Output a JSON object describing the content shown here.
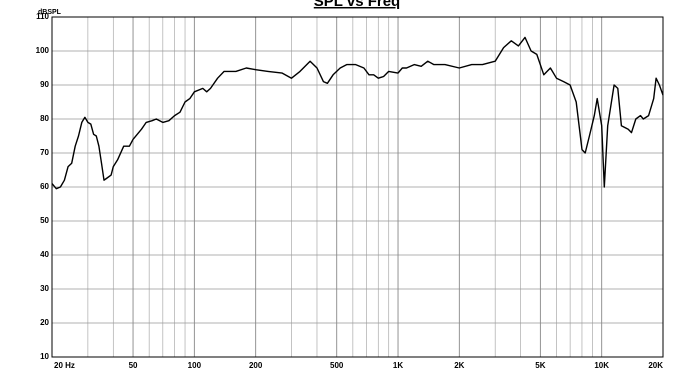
{
  "chart_data": {
    "type": "line",
    "title": "SPL vs Freq",
    "y_label": "dBSPL",
    "x": [
      20,
      21,
      22,
      23,
      24,
      25,
      26,
      27,
      28,
      29,
      30,
      31,
      32,
      33,
      34,
      35,
      36,
      37,
      39,
      40,
      42,
      45,
      48,
      50,
      55,
      58,
      62,
      65,
      70,
      75,
      80,
      85,
      90,
      95,
      100,
      110,
      115,
      120,
      130,
      140,
      150,
      160,
      180,
      200,
      230,
      270,
      300,
      330,
      370,
      400,
      430,
      450,
      480,
      520,
      560,
      620,
      680,
      720,
      760,
      800,
      850,
      900,
      1000,
      1050,
      1100,
      1200,
      1300,
      1400,
      1500,
      1700,
      2000,
      2300,
      2600,
      3000,
      3300,
      3600,
      3900,
      4200,
      4500,
      4800,
      5200,
      5600,
      6000,
      6500,
      7000,
      7500,
      8000,
      8300,
      8700,
      9200,
      9500,
      10000,
      10300,
      10700,
      11500,
      12000,
      12500,
      13500,
      14000,
      14700,
      15500,
      16000,
      17000,
      18000,
      18500,
      19200,
      20000
    ],
    "series": [
      {
        "color": "#000000",
        "values": [
          61,
          59.5,
          60,
          62,
          66,
          67,
          72,
          75,
          79,
          80.5,
          79,
          78.5,
          75.5,
          75,
          72,
          67,
          62,
          62.5,
          63.5,
          66,
          68,
          72,
          72,
          74,
          77,
          79,
          79.5,
          80,
          79,
          79.5,
          81,
          82,
          85,
          86,
          88,
          89,
          88,
          89,
          92,
          94,
          94,
          94,
          95,
          94.5,
          94,
          93.5,
          92,
          94,
          97,
          95,
          91,
          90.5,
          93,
          95,
          96,
          96,
          95,
          93,
          93,
          92,
          92.5,
          94,
          93.5,
          95,
          95,
          96,
          95.5,
          97,
          96,
          96,
          95,
          96,
          96,
          97,
          101,
          103,
          101.5,
          104,
          100,
          99,
          93,
          95,
          92,
          91,
          90,
          85,
          71,
          70,
          75,
          81,
          86,
          78,
          60,
          78,
          90,
          89,
          78,
          77,
          76,
          80,
          81,
          80,
          81,
          86,
          92,
          90,
          87
        ]
      }
    ],
    "xlim": [
      20,
      20000
    ],
    "log_x": true,
    "xticks": [
      {
        "value": 20,
        "label": "20 Hz"
      },
      50,
      100,
      200,
      500,
      {
        "value": 1000,
        "label": "1K"
      },
      {
        "value": 2000,
        "label": "2K"
      },
      {
        "value": 5000,
        "label": "5K"
      },
      {
        "value": 10000,
        "label": "10K"
      },
      {
        "value": 20000,
        "label": "20K"
      }
    ],
    "xgrid": [
      30,
      40,
      60,
      70,
      80,
      90,
      300,
      400,
      600,
      700,
      800,
      900,
      3000,
      4000,
      6000,
      7000,
      8000,
      9000
    ],
    "ylim": [
      10,
      110
    ],
    "yticks": [
      10,
      20,
      30,
      40,
      50,
      60,
      70,
      80,
      90,
      100,
      110
    ],
    "grid": true
  }
}
